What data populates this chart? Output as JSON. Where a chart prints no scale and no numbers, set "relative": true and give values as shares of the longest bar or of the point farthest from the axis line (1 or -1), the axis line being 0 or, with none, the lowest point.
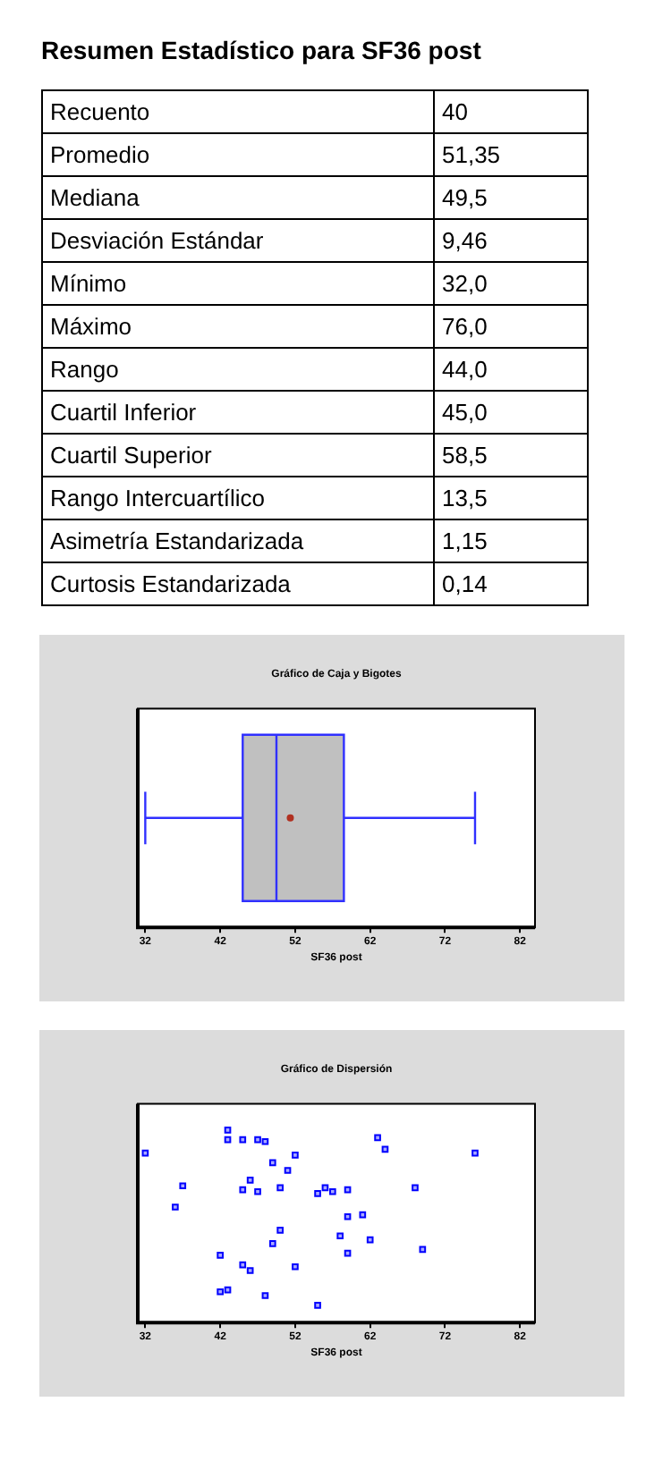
{
  "chart_data": [
    {
      "type": "other",
      "title": "Resumen Estadístico para SF36 post",
      "annotations": [
        "Recuento",
        "40",
        "Promedio",
        "51,35",
        "Mediana",
        "49,5",
        "Desviación Estándar",
        "9,46",
        "Mínimo",
        "32,0",
        "Máximo",
        "76,0",
        "Rango",
        "44,0",
        "Cuartil Inferior",
        "45,0",
        "Cuartil Superior",
        "58,5",
        "Rango Intercuartílico",
        "13,5",
        "Asimetría Estandarizada",
        "1,15",
        "Curtosis Estandarizada",
        "0,14"
      ]
    },
    {
      "type": "box",
      "title": "Gráfico de Caja y Bigotes",
      "xlabel": "SF36 post",
      "orientation": "horizontal",
      "categories": [
        null
      ],
      "color": "#c0c0c0",
      "xlim": [
        31,
        84
      ],
      "xticks": [
        32,
        42,
        52,
        62,
        72,
        82
      ],
      "grid": false,
      "legend": false,
      "tick_labels": "x",
      "boxes": [
        {
          "low": 32,
          "q1": 45,
          "median": 49.5,
          "q3": 58.5,
          "high": 76,
          "mean": 51.35
        }
      ]
    },
    {
      "type": "scatter",
      "title": "Gráfico de Dispersión",
      "xlabel": "SF36 post",
      "relative": true,
      "color": "#0000ff",
      "marker": "square",
      "xlim": [
        31,
        84
      ],
      "xticks": [
        32,
        42,
        52,
        62,
        72,
        82
      ],
      "grid": false,
      "legend": false,
      "tick_labels": "x",
      "x": [
        32,
        37,
        36,
        43,
        43,
        45,
        47,
        48,
        52,
        49,
        51,
        46,
        45,
        47,
        50,
        55,
        56,
        57,
        59,
        63,
        64,
        76,
        68,
        59,
        61,
        50,
        49,
        58,
        62,
        59,
        69,
        42,
        45,
        46,
        52,
        42,
        43,
        48,
        55
      ],
      "values": [
        0.88,
        0.71,
        0.6,
        1,
        0.95,
        0.95,
        0.95,
        0.94,
        0.87,
        0.83,
        0.79,
        0.74,
        0.69,
        0.68,
        0.7,
        0.67,
        0.7,
        0.68,
        0.69,
        0.96,
        0.9,
        0.88,
        0.7,
        0.55,
        0.56,
        0.48,
        0.41,
        0.45,
        0.43,
        0.36,
        0.38,
        0.35,
        0.3,
        0.27,
        0.29,
        0.16,
        0.17,
        0.14,
        0.09
      ]
    }
  ]
}
